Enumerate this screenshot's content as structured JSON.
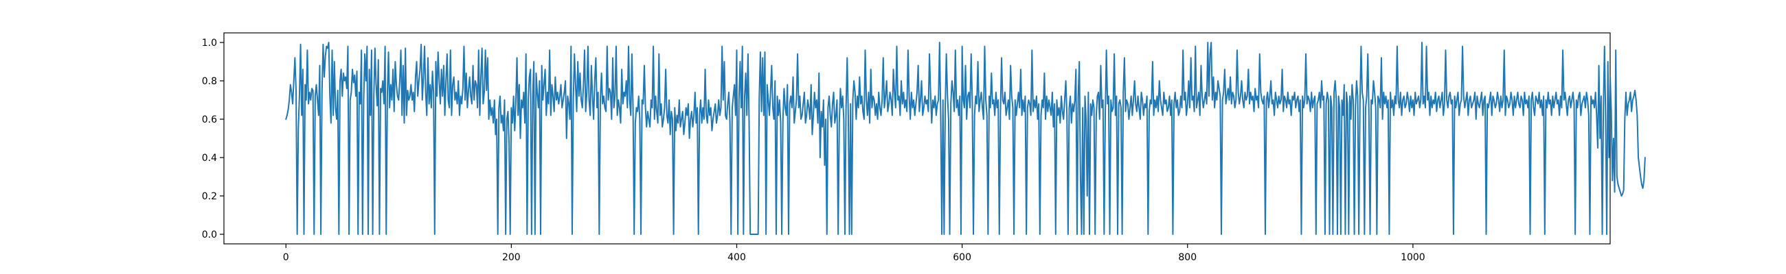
{
  "chart_data": {
    "type": "line",
    "title": "",
    "xlabel": "",
    "ylabel": "",
    "xlim": [
      -55,
      1175
    ],
    "ylim": [
      -0.05,
      1.05
    ],
    "grid": false,
    "legend": "none",
    "x_ticks": [
      0,
      200,
      400,
      600,
      800,
      1000
    ],
    "x_tick_labels": [
      "0",
      "200",
      "400",
      "600",
      "800",
      "1000"
    ],
    "y_ticks": [
      0.0,
      0.2,
      0.4,
      0.6,
      0.8,
      1.0
    ],
    "y_tick_labels": [
      "0.0",
      "0.2",
      "0.4",
      "0.6",
      "0.8",
      "1.0"
    ],
    "series": [
      {
        "color": "#1f77b4",
        "x_start": 0,
        "x_step": 1,
        "values": [
          0.6,
          0.62,
          0.65,
          0.7,
          0.78,
          0.74,
          0.68,
          0.8,
          0.92,
          0.75,
          0.0,
          0.55,
          0.72,
          0.99,
          0.62,
          0.86,
          0.0,
          0.78,
          0.7,
          0.96,
          0.68,
          0.74,
          0.7,
          0.76,
          0.75,
          0.0,
          0.72,
          0.78,
          0.7,
          0.62,
          0.88,
          0.0,
          0.74,
          0.99,
          0.82,
          0.93,
          0.98,
          0.97,
          1.0,
          0.72,
          0.58,
          0.96,
          0.62,
          0.9,
          0.66,
          0.6,
          0.75,
          0.0,
          0.8,
          0.86,
          0.72,
          0.84,
          0.8,
          0.82,
          0.76,
          0.98,
          0.0,
          0.7,
          0.74,
          0.86,
          0.79,
          0.83,
          0.72,
          0.85,
          0.0,
          0.74,
          0.68,
          0.96,
          0.0,
          0.7,
          0.94,
          0.8,
          0.98,
          0.0,
          0.86,
          0.62,
          0.96,
          0.0,
          0.72,
          0.97,
          0.78,
          0.67,
          0.91,
          0.0,
          0.76,
          0.74,
          0.8,
          0.68,
          0.98,
          0.0,
          0.72,
          0.95,
          0.66,
          0.78,
          0.7,
          0.86,
          0.64,
          0.9,
          0.78,
          0.72,
          0.7,
          0.8,
          0.96,
          0.62,
          0.88,
          0.58,
          0.97,
          0.62,
          0.75,
          0.7,
          0.72,
          0.78,
          0.7,
          0.74,
          0.64,
          0.82,
          0.9,
          0.72,
          0.8,
          0.86,
          0.99,
          0.7,
          0.82,
          0.98,
          0.74,
          0.62,
          0.92,
          0.68,
          0.78,
          0.66,
          0.85,
          0.74,
          0.0,
          0.9,
          0.72,
          0.95,
          0.8,
          0.68,
          0.86,
          0.72,
          0.88,
          0.62,
          0.8,
          0.94,
          0.7,
          0.66,
          0.96,
          0.62,
          0.78,
          0.82,
          0.7,
          0.74,
          0.68,
          0.8,
          0.62,
          0.72,
          0.68,
          0.76,
          0.98,
          0.7,
          0.84,
          0.66,
          0.75,
          0.82,
          0.72,
          0.68,
          0.88,
          0.7,
          0.8,
          0.78,
          0.66,
          0.96,
          0.62,
          0.82,
          0.97,
          0.68,
          0.74,
          0.96,
          0.75,
          0.92,
          0.6,
          0.7,
          0.62,
          0.66,
          0.58,
          0.7,
          0.52,
          0.6,
          0.0,
          0.66,
          0.72,
          0.58,
          0.62,
          0.54,
          0.7,
          0.0,
          0.6,
          0.64,
          0.48,
          0.0,
          0.66,
          0.58,
          0.72,
          0.54,
          0.68,
          0.92,
          0.62,
          0.78,
          0.5,
          0.7,
          0.66,
          0.74,
          0.58,
          0.94,
          0.0,
          0.7,
          0.82,
          0.86,
          0.0,
          0.72,
          0.9,
          0.0,
          0.84,
          0.74,
          0.66,
          0.8,
          0.0,
          0.88,
          0.7,
          0.78,
          0.86,
          0.62,
          0.74,
          0.68,
          0.96,
          0.62,
          0.78,
          0.72,
          0.64,
          0.82,
          0.7,
          0.74,
          0.68,
          0.72,
          0.78,
          0.66,
          0.7,
          0.74,
          0.8,
          0.5,
          0.72,
          0.68,
          0.6,
          0.98,
          0.0,
          0.7,
          0.94,
          0.78,
          0.64,
          0.9,
          0.72,
          0.84,
          0.7,
          0.66,
          0.78,
          0.96,
          0.64,
          0.74,
          0.98,
          0.7,
          0.62,
          0.88,
          0.72,
          0.6,
          0.8,
          0.92,
          0.66,
          0.74,
          0.0,
          0.7,
          0.84,
          0.68,
          0.72,
          0.66,
          0.64,
          0.98,
          0.7,
          0.76,
          0.74,
          0.6,
          0.92,
          0.66,
          0.72,
          0.98,
          0.62,
          0.7,
          0.66,
          0.58,
          0.86,
          0.68,
          0.74,
          0.72,
          0.8,
          0.66,
          0.98,
          0.7,
          0.62,
          0.94,
          0.66,
          0.0,
          0.58,
          0.66,
          0.64,
          0.72,
          0.6,
          0.0,
          0.7,
          0.68,
          0.88,
          0.66,
          0.56,
          0.64,
          0.6,
          0.56,
          0.7,
          0.66,
          0.98,
          0.6,
          0.72,
          0.64,
          0.58,
          0.94,
          0.62,
          0.68,
          0.56,
          0.6,
          0.66,
          0.86,
          0.62,
          0.58,
          0.7,
          0.52,
          0.64,
          0.6,
          0.0,
          0.66,
          0.54,
          0.62,
          0.58,
          0.7,
          0.56,
          0.6,
          0.64,
          0.52,
          0.58,
          0.66,
          0.62,
          0.68,
          0.5,
          0.6,
          0.64,
          0.56,
          0.62,
          0.74,
          0.58,
          0.66,
          0.0,
          0.62,
          0.7,
          0.58,
          0.66,
          0.6,
          0.86,
          0.62,
          0.58,
          0.7,
          0.62,
          0.66,
          0.54,
          0.6,
          0.64,
          0.68,
          0.58,
          0.62,
          0.7,
          0.62,
          0.66,
          0.98,
          0.7,
          0.9,
          0.62,
          0.6,
          0.68,
          0.74,
          0.58,
          0.0,
          0.66,
          0.72,
          0.78,
          0.62,
          0.96,
          0.0,
          0.7,
          0.9,
          0.66,
          0.98,
          0.0,
          0.72,
          0.84,
          0.62,
          0.94,
          0.58,
          0.0,
          0.0,
          0.0,
          0.0,
          0.0,
          0.0,
          0.0,
          0.0,
          0.72,
          0.95,
          0.64,
          0.92,
          0.62,
          0.95,
          0.0,
          0.78,
          0.7,
          0.62,
          0.74,
          0.88,
          0.66,
          0.6,
          0.8,
          0.0,
          0.72,
          0.62,
          0.7,
          0.58,
          0.0,
          0.6,
          0.76,
          0.66,
          0.62,
          0.78,
          0.0,
          0.68,
          0.72,
          0.66,
          0.82,
          0.58,
          0.64,
          0.7,
          0.94,
          0.66,
          0.72,
          0.6,
          0.62,
          0.68,
          0.74,
          0.58,
          0.62,
          0.7,
          0.66,
          0.6,
          0.78,
          0.52,
          0.62,
          0.74,
          0.66,
          0.7,
          0.58,
          0.84,
          0.4,
          0.64,
          0.56,
          0.7,
          0.36,
          0.6,
          0.0,
          0.66,
          0.72,
          0.62,
          0.56,
          0.68,
          0.74,
          0.58,
          0.62,
          0.7,
          0.0,
          0.58,
          0.76,
          0.66,
          0.72,
          0.6,
          0.0,
          0.66,
          0.92,
          0.62,
          0.0,
          0.68,
          0.0,
          0.7,
          0.8,
          0.74,
          0.6,
          0.72,
          0.66,
          0.82,
          0.68,
          0.72,
          0.64,
          0.6,
          0.96,
          0.7,
          0.62,
          0.74,
          0.58,
          0.86,
          0.66,
          0.72,
          0.7,
          0.62,
          0.68,
          0.6,
          0.74,
          0.66,
          0.62,
          0.7,
          0.92,
          0.66,
          0.72,
          0.8,
          0.64,
          0.68,
          0.74,
          0.7,
          0.62,
          0.86,
          0.74,
          0.66,
          0.98,
          0.7,
          0.72,
          0.62,
          0.8,
          0.68,
          0.74,
          0.66,
          0.7,
          0.64,
          0.96,
          0.72,
          0.6,
          0.74,
          0.66,
          0.7,
          0.62,
          0.68,
          0.74,
          0.88,
          0.64,
          0.7,
          0.8,
          0.62,
          0.66,
          0.72,
          0.68,
          0.7,
          0.64,
          0.94,
          0.74,
          0.58,
          0.7,
          0.66,
          0.72,
          0.62,
          0.68,
          0.7,
          1.0,
          0.62,
          0.0,
          0.7,
          0.0,
          0.66,
          0.94,
          0.72,
          0.6,
          0.0,
          0.68,
          0.8,
          0.74,
          0.64,
          0.96,
          0.66,
          0.7,
          0.62,
          0.72,
          0.0,
          0.98,
          0.7,
          0.66,
          0.88,
          0.6,
          0.72,
          0.74,
          0.66,
          0.94,
          0.7,
          0.0,
          0.62,
          0.72,
          0.68,
          0.9,
          0.64,
          0.7,
          0.74,
          0.66,
          0.6,
          0.98,
          0.7,
          0.62,
          0.0,
          0.72,
          0.66,
          0.84,
          0.68,
          0.7,
          0.62,
          0.74,
          0.66,
          0.7,
          0.0,
          0.64,
          0.92,
          0.7,
          0.68,
          0.74,
          0.62,
          0.66,
          0.7,
          0.6,
          0.88,
          0.72,
          0.66,
          0.0,
          0.7,
          0.62,
          0.68,
          0.74,
          0.66,
          0.86,
          0.62,
          0.7,
          0.64,
          0.72,
          0.0,
          0.66,
          0.7,
          0.68,
          0.62,
          0.96,
          0.64,
          0.7,
          0.66,
          0.72,
          0.6,
          0.68,
          0.0,
          0.62,
          0.7,
          0.66,
          0.84,
          0.6,
          0.72,
          0.64,
          0.7,
          0.66,
          0.62,
          0.74,
          0.56,
          0.68,
          0.0,
          0.7,
          0.62,
          0.66,
          0.58,
          0.72,
          0.64,
          0.6,
          0.7,
          0.8,
          0.62,
          0.0,
          0.66,
          0.72,
          0.58,
          0.68,
          0.64,
          0.7,
          0.86,
          0.0,
          0.72,
          0.9,
          0.3,
          0.0,
          0.66,
          0.0,
          0.72,
          0.6,
          0.2,
          0.74,
          0.0,
          0.68,
          0.62,
          0.7,
          0.66,
          0.0,
          0.62,
          0.72,
          0.74,
          0.6,
          0.88,
          0.66,
          0.7,
          0.0,
          0.62,
          0.96,
          0.68,
          0.72,
          0.0,
          0.7,
          0.64,
          0.66,
          0.94,
          0.62,
          0.72,
          0.0,
          0.68,
          0.7,
          0.66,
          0.0,
          0.74,
          0.92,
          0.64,
          0.7,
          0.68,
          0.6,
          0.66,
          0.72,
          0.62,
          0.7,
          0.8,
          0.68,
          0.64,
          0.72,
          0.66,
          0.6,
          0.74,
          0.7,
          0.62,
          0.68,
          0.66,
          0.72,
          0.0,
          0.64,
          0.7,
          0.68,
          0.9,
          0.62,
          0.7,
          0.66,
          0.72,
          0.64,
          0.8,
          0.7,
          0.66,
          0.62,
          0.74,
          0.68,
          0.7,
          0.64,
          0.66,
          0.72,
          0.62,
          0.7,
          0.0,
          0.68,
          0.74,
          0.66,
          0.7,
          0.62,
          0.64,
          0.72,
          0.66,
          0.96,
          0.7,
          0.74,
          0.62,
          0.68,
          0.8,
          0.66,
          0.92,
          0.7,
          0.72,
          0.64,
          0.98,
          0.66,
          0.7,
          0.74,
          0.62,
          0.88,
          0.72,
          0.66,
          0.7,
          0.74,
          0.68,
          1.0,
          0.72,
          0.94,
          1.0,
          0.7,
          0.82,
          0.66,
          0.74,
          0.7,
          0.8,
          0.76,
          0.72,
          0.0,
          0.7,
          0.74,
          0.86,
          0.68,
          0.72,
          0.76,
          0.7,
          0.82,
          0.68,
          0.74,
          0.72,
          0.66,
          0.7,
          0.96,
          0.74,
          0.68,
          0.72,
          0.8,
          0.7,
          0.66,
          0.74,
          0.7,
          0.72,
          0.86,
          0.68,
          0.74,
          0.7,
          0.72,
          0.64,
          0.76,
          0.7,
          0.72,
          0.66,
          0.94,
          0.74,
          0.7,
          0.68,
          0.72,
          0.0,
          0.7,
          0.74,
          0.66,
          0.72,
          0.8,
          0.68,
          0.7,
          0.62,
          0.74,
          0.7,
          0.66,
          0.72,
          0.68,
          0.7,
          0.86,
          0.64,
          0.72,
          0.7,
          0.66,
          0.74,
          0.68,
          0.7,
          0.62,
          0.72,
          0.7,
          0.74,
          0.66,
          0.7,
          0.72,
          0.64,
          0.7,
          0.0,
          0.72,
          0.66,
          0.7,
          0.94,
          0.68,
          0.72,
          0.7,
          0.64,
          0.74,
          0.66,
          0.7,
          0.72,
          0.0,
          0.68,
          0.7,
          0.74,
          0.66,
          0.8,
          0.7,
          0.72,
          0.0,
          0.68,
          0.74,
          0.7,
          0.0,
          0.72,
          0.66,
          0.0,
          0.74,
          0.8,
          0.7,
          0.0,
          0.72,
          0.66,
          0.0,
          0.7,
          0.62,
          0.78,
          0.0,
          0.74,
          0.68,
          0.0,
          0.72,
          0.6,
          0.78,
          0.7,
          0.0,
          0.66,
          0.8,
          0.72,
          0.0,
          0.68,
          0.98,
          0.74,
          0.7,
          0.0,
          0.66,
          0.72,
          0.94,
          0.62,
          0.0,
          0.7,
          0.68,
          0.8,
          0.74,
          0.66,
          0.0,
          0.72,
          0.7,
          0.66,
          0.92,
          0.6,
          0.74,
          0.68,
          0.72,
          0.66,
          0.7,
          0.0,
          0.74,
          0.66,
          0.7,
          0.62,
          0.72,
          0.68,
          0.98,
          0.7,
          0.66,
          0.74,
          0.62,
          0.7,
          0.72,
          0.66,
          0.68,
          0.74,
          0.7,
          0.64,
          0.72,
          0.66,
          0.7,
          0.62,
          0.74,
          0.68,
          0.7,
          0.72,
          0.66,
          0.7,
          1.0,
          0.68,
          0.72,
          0.66,
          0.98,
          0.7,
          0.74,
          0.62,
          0.72,
          0.66,
          0.7,
          0.68,
          0.74,
          0.64,
          0.7,
          0.72,
          0.66,
          0.7,
          0.74,
          0.62,
          0.68,
          0.96,
          0.7,
          0.66,
          0.72,
          0.74,
          0.68,
          0.7,
          0.0,
          0.72,
          0.66,
          0.7,
          0.74,
          0.62,
          0.68,
          0.7,
          0.98,
          0.72,
          0.66,
          0.7,
          0.74,
          0.62,
          0.7,
          0.72,
          0.66,
          0.68,
          0.7,
          0.74,
          0.6,
          0.72,
          0.68,
          0.66,
          0.7,
          0.74,
          0.62,
          0.7,
          0.72,
          0.0,
          0.68,
          0.66,
          0.7,
          0.74,
          0.62,
          0.72,
          0.7,
          0.66,
          0.68,
          0.74,
          0.7,
          0.64,
          0.72,
          0.66,
          0.7,
          0.96,
          0.62,
          0.72,
          0.7,
          0.66,
          0.68,
          0.74,
          0.7,
          0.62,
          0.72,
          0.66,
          0.7,
          0.74,
          0.68,
          0.66,
          0.72,
          0.7,
          0.62,
          0.74,
          0.68,
          0.7,
          0.66,
          0.72,
          0.0,
          0.7,
          0.74,
          0.66,
          0.62,
          0.72,
          0.7,
          0.68,
          0.74,
          0.66,
          0.7,
          0.62,
          0.72,
          0.0,
          0.7,
          0.66,
          0.74,
          0.68,
          0.7,
          0.62,
          0.72,
          0.66,
          0.7,
          0.74,
          0.68,
          0.7,
          0.62,
          0.72,
          0.66,
          0.96,
          0.7,
          0.74,
          0.68,
          0.62,
          0.7,
          0.72,
          0.66,
          0.7,
          0.74,
          0.68,
          0.0,
          0.7,
          0.66,
          0.72,
          0.74,
          0.62,
          0.68,
          0.7,
          0.72,
          0.66,
          0.74,
          0.7,
          0.62,
          0.0,
          0.72,
          0.68,
          0.7,
          0.66,
          0.74,
          0.62,
          0.45,
          0.88,
          0.5,
          0.72,
          0.0,
          0.66,
          0.98,
          0.6,
          0.0,
          0.9,
          0.4,
          0.82,
          0.64,
          0.28,
          0.5,
          0.22,
          0.96,
          0.3,
          0.26,
          0.24,
          0.22,
          0.2,
          0.21,
          0.23,
          0.6,
          0.74,
          0.62,
          0.68,
          0.7,
          0.74,
          0.64,
          0.7,
          0.72,
          0.75,
          0.7,
          0.62,
          0.4,
          0.35,
          0.3,
          0.26,
          0.24,
          0.28,
          0.4
        ]
      }
    ]
  }
}
